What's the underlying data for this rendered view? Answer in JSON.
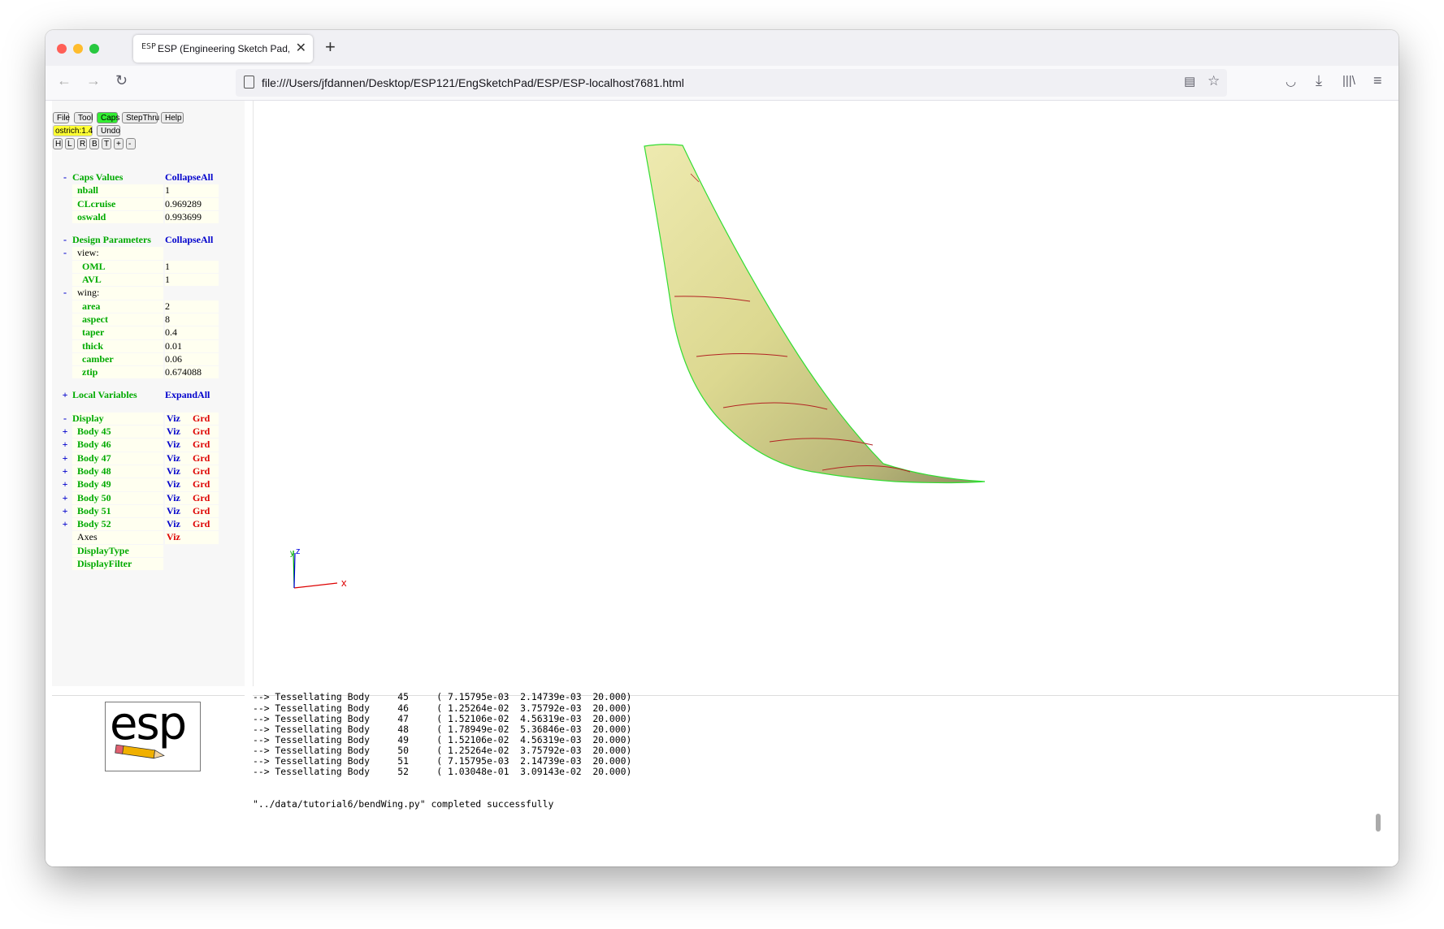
{
  "browser": {
    "tab_title": "ESP (Engineering Sketch Pad, V",
    "tab_favicon": "ESP",
    "new_tab": "+",
    "url": "file:///Users/jfdannen/Desktop/ESP121/EngSketchPad/ESP/ESP-localhost7681.html",
    "icons": [
      "back-arrow-icon",
      "forward-arrow-icon",
      "reload-icon",
      "page-icon",
      "reader-view-icon",
      "star-icon",
      "pocket-icon",
      "download-icon",
      "library-icon",
      "menu-icon"
    ]
  },
  "toolbar": {
    "file": "File",
    "tool": "Tool",
    "caps": "Caps",
    "stepthru": "StepThru",
    "help": "Help",
    "ostrich": "ostrich:1.4",
    "undo": "Undo",
    "views": [
      "H",
      "L",
      "R",
      "B",
      "T",
      "+",
      "-"
    ]
  },
  "caps_values": {
    "sign": "-",
    "title": "Caps Values",
    "action": "CollapseAll",
    "items": [
      {
        "name": "nball",
        "value": "1"
      },
      {
        "name": "CLcruise",
        "value": "0.969289"
      },
      {
        "name": "oswald",
        "value": "0.993699"
      }
    ]
  },
  "design_parameters": {
    "sign": "-",
    "title": "Design Parameters",
    "action": "CollapseAll",
    "view_group": {
      "sign": "-",
      "label": "view:"
    },
    "view_items": [
      {
        "name": "OML",
        "value": "1"
      },
      {
        "name": "AVL",
        "value": "1"
      }
    ],
    "wing_group": {
      "sign": "-",
      "label": "wing:"
    },
    "wing_items": [
      {
        "name": "area",
        "value": "2"
      },
      {
        "name": "aspect",
        "value": "8"
      },
      {
        "name": "taper",
        "value": "0.4"
      },
      {
        "name": "thick",
        "value": "0.01"
      },
      {
        "name": "camber",
        "value": "0.06"
      },
      {
        "name": "ztip",
        "value": "0.674088"
      }
    ]
  },
  "local_variables": {
    "sign": "+",
    "title": "Local Variables",
    "action": "ExpandAll"
  },
  "display": {
    "sign": "-",
    "title": "Display",
    "viz": "Viz",
    "grd": "Grd",
    "bodies": [
      "Body 45",
      "Body 46",
      "Body 47",
      "Body 48",
      "Body 49",
      "Body 50",
      "Body 51",
      "Body 52"
    ],
    "body_sign": "+",
    "axes": "Axes",
    "axes_viz": "Viz",
    "display_type": "DisplayType",
    "display_filter": "DisplayFilter"
  },
  "viewer": {
    "axis_x": "x",
    "axis_y": "y",
    "axis_z": "z",
    "colors": {
      "surface": "#e3e09a",
      "edge": "#33dd33",
      "section": "#b22222",
      "axis_x": "#dd0000",
      "axis_y": "#00aa00",
      "axis_z": "#0000dd"
    }
  },
  "logo_text": "esp",
  "console": {
    "partial_line": "--> Tessellating Body     45     ( 7.15795e-03  2.14739e-03  20.000)",
    "lines": [
      "--> Tessellating Body     46     ( 1.25264e-02  3.75792e-03  20.000)",
      "--> Tessellating Body     47     ( 1.52106e-02  4.56319e-03  20.000)",
      "--> Tessellating Body     48     ( 1.78949e-02  5.36846e-03  20.000)",
      "--> Tessellating Body     49     ( 1.52106e-02  4.56319e-03  20.000)",
      "--> Tessellating Body     50     ( 1.25264e-02  3.75792e-03  20.000)",
      "--> Tessellating Body     51     ( 7.15795e-03  2.14739e-03  20.000)",
      "--> Tessellating Body     52     ( 1.03048e-01  3.09143e-02  20.000)"
    ],
    "final": "\"../data/tutorial6/bendWing.py\" completed successfully"
  }
}
